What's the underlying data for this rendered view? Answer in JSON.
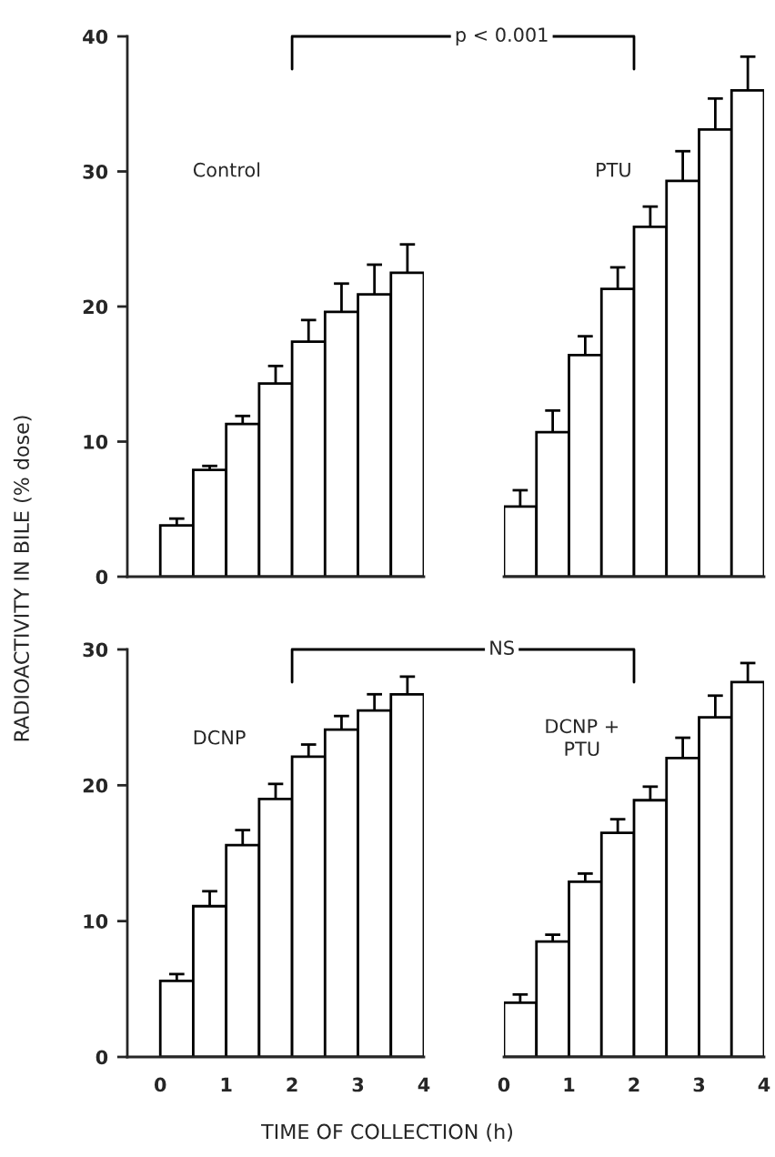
{
  "chart_data": [
    {
      "type": "bar",
      "ylabel": "RADIOACTIVITY IN BILE (% dose)",
      "annotations": [
        "Control",
        "p < 0.001"
      ],
      "x": [
        0.25,
        0.75,
        1.25,
        1.75,
        2.25,
        2.75,
        3.25,
        3.75
      ],
      "values": [
        3.8,
        7.9,
        11.3,
        14.3,
        17.4,
        19.6,
        20.9,
        22.5
      ],
      "errors": [
        0.5,
        0.3,
        0.6,
        1.3,
        1.6,
        2.1,
        2.2,
        2.1
      ],
      "color": "#ffffff",
      "xlim": [
        -0.5,
        4
      ],
      "xticks": [
        0,
        1,
        2,
        3,
        4
      ],
      "ylim": [
        0,
        40
      ],
      "yticks": [
        0,
        10,
        20,
        30,
        40
      ],
      "tick_labels": "y"
    },
    {
      "type": "bar",
      "annotations": [
        "PTU"
      ],
      "x": [
        0.25,
        0.75,
        1.25,
        1.75,
        2.25,
        2.75,
        3.25,
        3.75
      ],
      "values": [
        5.2,
        10.7,
        16.4,
        21.3,
        25.9,
        29.3,
        33.1,
        36.0
      ],
      "errors": [
        1.2,
        1.6,
        1.4,
        1.6,
        1.5,
        2.2,
        2.3,
        2.5
      ],
      "color": "#ffffff",
      "xlim": [
        0,
        4
      ],
      "xticks": [
        0,
        1,
        2,
        3,
        4
      ],
      "ylim": [
        0,
        40
      ],
      "yticks": [
        0,
        10,
        20,
        30,
        40
      ],
      "tick_labels": false
    },
    {
      "type": "bar",
      "xlabel": "TIME OF COLLECTION (h)",
      "annotations": [
        "DCNP",
        "NS"
      ],
      "x": [
        0.25,
        0.75,
        1.25,
        1.75,
        2.25,
        2.75,
        3.25,
        3.75
      ],
      "values": [
        5.6,
        11.1,
        15.6,
        19.0,
        22.1,
        24.1,
        25.5,
        26.7
      ],
      "errors": [
        0.5,
        1.1,
        1.1,
        1.1,
        0.9,
        1.0,
        1.2,
        1.3
      ],
      "color": "#ffffff",
      "xlim": [
        -0.5,
        4
      ],
      "xticks": [
        0,
        1,
        2,
        3,
        4
      ],
      "ylim": [
        0,
        30
      ],
      "yticks": [
        0,
        10,
        20,
        30
      ]
    },
    {
      "type": "bar",
      "annotations": [
        "DCNP +\nPTU"
      ],
      "x": [
        0.25,
        0.75,
        1.25,
        1.75,
        2.25,
        2.75,
        3.25,
        3.75
      ],
      "values": [
        4.0,
        8.5,
        12.9,
        16.5,
        18.9,
        22.0,
        25.0,
        27.6
      ],
      "errors": [
        0.6,
        0.5,
        0.6,
        1.0,
        1.0,
        1.5,
        1.6,
        1.4
      ],
      "color": "#ffffff",
      "xlim": [
        0,
        4
      ],
      "xticks": [
        0,
        1,
        2,
        3,
        4
      ],
      "ylim": [
        0,
        30
      ],
      "yticks": [
        0,
        10,
        20,
        30
      ],
      "tick_labels": "x"
    }
  ]
}
